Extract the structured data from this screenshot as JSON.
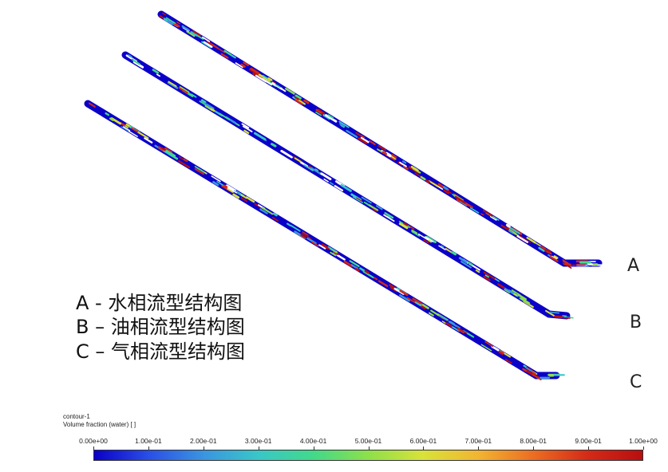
{
  "tube_labels": {
    "a": "A",
    "b": "B",
    "c": "C"
  },
  "legend_text": {
    "line_a": "A - 水相流型结构图",
    "line_b": "B – 油相流型结构图",
    "line_c": "C – 气相流型结构图"
  },
  "colorbar": {
    "title": "contour-1",
    "subtitle": "Volume fraction (water) [ ]",
    "ticks": [
      "0.00e+00",
      "1.00e-01",
      "2.00e-01",
      "3.00e-01",
      "4.00e-01",
      "5.00e-01",
      "6.00e-01",
      "7.00e-01",
      "8.00e-01",
      "9.00e-01",
      "1.00e+00"
    ],
    "colors": [
      "#0b00c8",
      "#2a4fe6",
      "#3a95e0",
      "#39c7c7",
      "#42d98a",
      "#8de04a",
      "#d9e23a",
      "#f2b531",
      "#ec6e22",
      "#d42a18",
      "#b80f10"
    ]
  }
}
